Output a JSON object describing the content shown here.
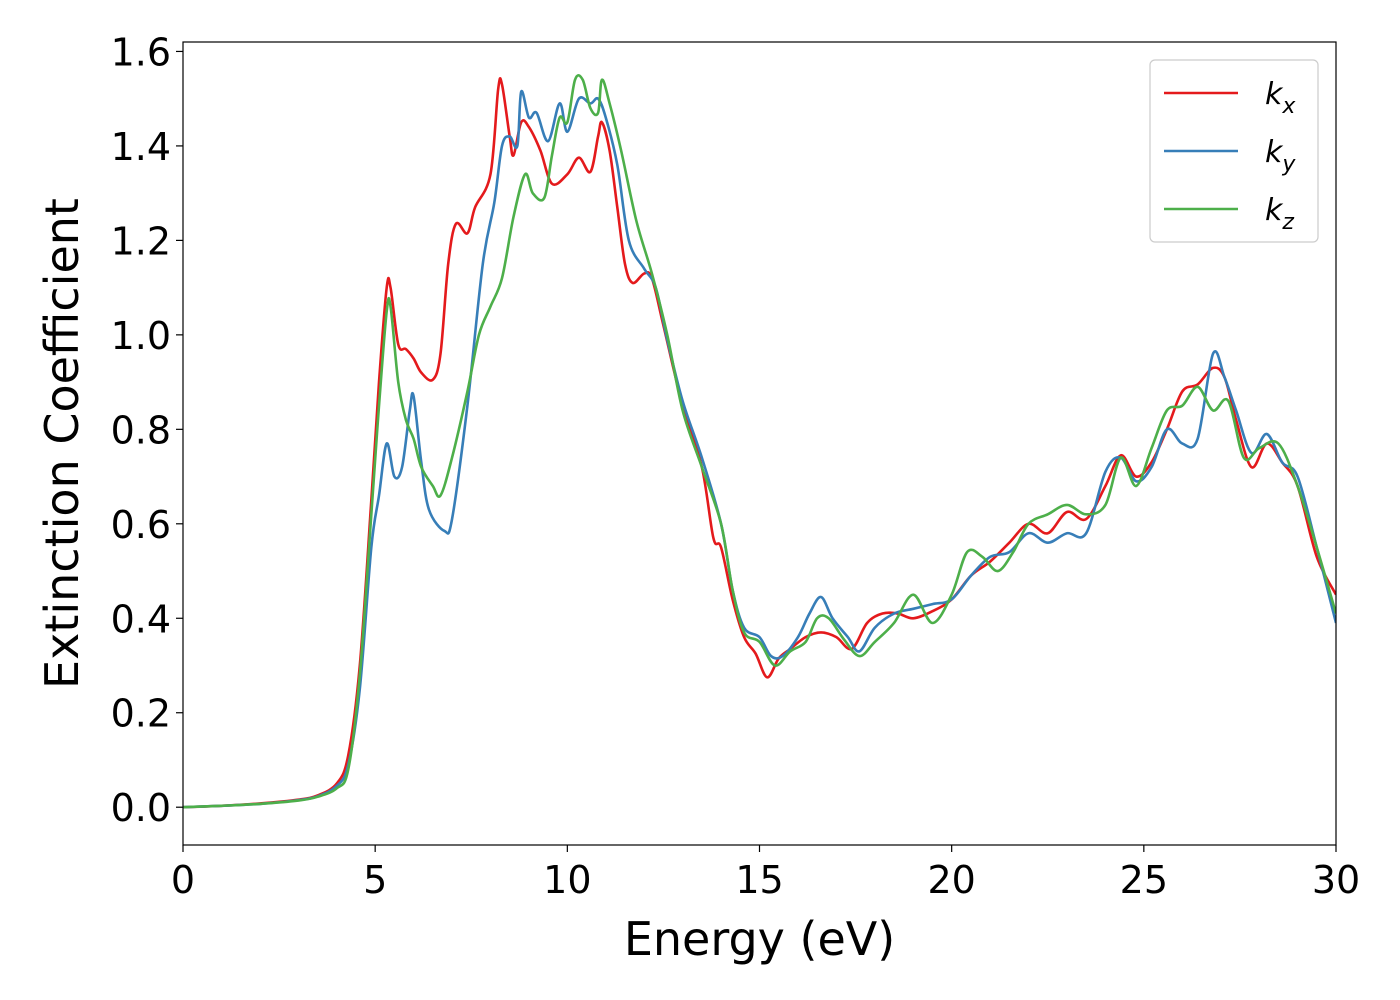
{
  "chart_data": {
    "type": "line",
    "title": "",
    "xlabel": "Energy (eV)",
    "ylabel": "Extinction Coefficient",
    "xlim": [
      0,
      30
    ],
    "ylim": [
      -0.08,
      1.62
    ],
    "xticks": [
      "0",
      "5",
      "10",
      "15",
      "20",
      "25",
      "30"
    ],
    "yticks": [
      "0.0",
      "0.2",
      "0.4",
      "0.6",
      "0.8",
      "1.0",
      "1.2",
      "1.4",
      "1.6"
    ],
    "grid": false,
    "legend_position": "top-right",
    "series": [
      {
        "name": "k",
        "subscript": "x",
        "color": "#e41a1c",
        "points": [
          [
            0,
            0
          ],
          [
            1,
            0.003
          ],
          [
            2,
            0.008
          ],
          [
            3,
            0.016
          ],
          [
            3.5,
            0.025
          ],
          [
            4.0,
            0.05
          ],
          [
            4.3,
            0.11
          ],
          [
            4.6,
            0.3
          ],
          [
            4.9,
            0.65
          ],
          [
            5.1,
            0.9
          ],
          [
            5.3,
            1.1
          ],
          [
            5.4,
            1.1
          ],
          [
            5.6,
            0.98
          ],
          [
            5.8,
            0.97
          ],
          [
            6.0,
            0.95
          ],
          [
            6.2,
            0.92
          ],
          [
            6.5,
            0.905
          ],
          [
            6.7,
            0.96
          ],
          [
            6.9,
            1.15
          ],
          [
            7.1,
            1.235
          ],
          [
            7.4,
            1.215
          ],
          [
            7.6,
            1.27
          ],
          [
            8.0,
            1.34
          ],
          [
            8.2,
            1.52
          ],
          [
            8.3,
            1.53
          ],
          [
            8.5,
            1.42
          ],
          [
            8.6,
            1.38
          ],
          [
            8.8,
            1.45
          ],
          [
            9.0,
            1.44
          ],
          [
            9.3,
            1.39
          ],
          [
            9.6,
            1.32
          ],
          [
            10.0,
            1.34
          ],
          [
            10.3,
            1.375
          ],
          [
            10.6,
            1.345
          ],
          [
            10.8,
            1.42
          ],
          [
            10.9,
            1.45
          ],
          [
            11.1,
            1.39
          ],
          [
            11.3,
            1.27
          ],
          [
            11.5,
            1.15
          ],
          [
            11.7,
            1.11
          ],
          [
            12.0,
            1.13
          ],
          [
            12.2,
            1.12
          ],
          [
            12.5,
            1.02
          ],
          [
            13.0,
            0.85
          ],
          [
            13.5,
            0.72
          ],
          [
            13.8,
            0.57
          ],
          [
            14.0,
            0.55
          ],
          [
            14.3,
            0.44
          ],
          [
            14.6,
            0.36
          ],
          [
            14.9,
            0.325
          ],
          [
            15.2,
            0.275
          ],
          [
            15.5,
            0.315
          ],
          [
            15.8,
            0.335
          ],
          [
            16.2,
            0.36
          ],
          [
            16.6,
            0.37
          ],
          [
            17.0,
            0.36
          ],
          [
            17.4,
            0.335
          ],
          [
            17.8,
            0.39
          ],
          [
            18.2,
            0.41
          ],
          [
            18.6,
            0.41
          ],
          [
            19.0,
            0.4
          ],
          [
            19.5,
            0.415
          ],
          [
            20.0,
            0.44
          ],
          [
            20.5,
            0.49
          ],
          [
            21.0,
            0.52
          ],
          [
            21.5,
            0.56
          ],
          [
            22.0,
            0.6
          ],
          [
            22.5,
            0.58
          ],
          [
            23.0,
            0.625
          ],
          [
            23.5,
            0.61
          ],
          [
            24.0,
            0.68
          ],
          [
            24.4,
            0.745
          ],
          [
            24.8,
            0.7
          ],
          [
            25.2,
            0.73
          ],
          [
            25.6,
            0.8
          ],
          [
            26.0,
            0.88
          ],
          [
            26.4,
            0.895
          ],
          [
            26.8,
            0.93
          ],
          [
            27.1,
            0.91
          ],
          [
            27.4,
            0.82
          ],
          [
            27.8,
            0.72
          ],
          [
            28.2,
            0.77
          ],
          [
            28.6,
            0.73
          ],
          [
            29.0,
            0.68
          ],
          [
            29.5,
            0.53
          ],
          [
            30.0,
            0.45
          ]
        ]
      },
      {
        "name": "k",
        "subscript": "y",
        "color": "#377eb8",
        "points": [
          [
            0,
            0
          ],
          [
            1,
            0.003
          ],
          [
            2,
            0.007
          ],
          [
            3,
            0.015
          ],
          [
            3.5,
            0.023
          ],
          [
            4.0,
            0.045
          ],
          [
            4.3,
            0.09
          ],
          [
            4.6,
            0.25
          ],
          [
            4.9,
            0.55
          ],
          [
            5.1,
            0.66
          ],
          [
            5.3,
            0.77
          ],
          [
            5.5,
            0.7
          ],
          [
            5.7,
            0.72
          ],
          [
            5.9,
            0.84
          ],
          [
            6.0,
            0.87
          ],
          [
            6.2,
            0.73
          ],
          [
            6.4,
            0.63
          ],
          [
            6.8,
            0.585
          ],
          [
            7.0,
            0.61
          ],
          [
            7.4,
            0.85
          ],
          [
            7.8,
            1.15
          ],
          [
            8.1,
            1.28
          ],
          [
            8.3,
            1.4
          ],
          [
            8.5,
            1.42
          ],
          [
            8.7,
            1.4
          ],
          [
            8.8,
            1.515
          ],
          [
            9.0,
            1.46
          ],
          [
            9.2,
            1.47
          ],
          [
            9.5,
            1.41
          ],
          [
            9.8,
            1.49
          ],
          [
            10.0,
            1.43
          ],
          [
            10.3,
            1.5
          ],
          [
            10.6,
            1.49
          ],
          [
            10.8,
            1.5
          ],
          [
            11.0,
            1.46
          ],
          [
            11.3,
            1.36
          ],
          [
            11.6,
            1.2
          ],
          [
            12.0,
            1.14
          ],
          [
            12.3,
            1.1
          ],
          [
            12.6,
            0.99
          ],
          [
            13.0,
            0.86
          ],
          [
            13.5,
            0.74
          ],
          [
            14.0,
            0.6
          ],
          [
            14.3,
            0.46
          ],
          [
            14.6,
            0.38
          ],
          [
            15.0,
            0.36
          ],
          [
            15.3,
            0.32
          ],
          [
            15.6,
            0.32
          ],
          [
            16.0,
            0.36
          ],
          [
            16.3,
            0.41
          ],
          [
            16.6,
            0.445
          ],
          [
            16.9,
            0.4
          ],
          [
            17.3,
            0.36
          ],
          [
            17.6,
            0.33
          ],
          [
            18.0,
            0.38
          ],
          [
            18.5,
            0.41
          ],
          [
            19.0,
            0.42
          ],
          [
            19.5,
            0.43
          ],
          [
            20.0,
            0.44
          ],
          [
            20.5,
            0.49
          ],
          [
            21.0,
            0.53
          ],
          [
            21.5,
            0.54
          ],
          [
            22.0,
            0.58
          ],
          [
            22.5,
            0.56
          ],
          [
            23.0,
            0.58
          ],
          [
            23.5,
            0.58
          ],
          [
            24.0,
            0.71
          ],
          [
            24.4,
            0.74
          ],
          [
            24.8,
            0.69
          ],
          [
            25.2,
            0.72
          ],
          [
            25.6,
            0.8
          ],
          [
            26.0,
            0.77
          ],
          [
            26.4,
            0.78
          ],
          [
            26.8,
            0.96
          ],
          [
            27.1,
            0.91
          ],
          [
            27.4,
            0.84
          ],
          [
            27.8,
            0.75
          ],
          [
            28.2,
            0.79
          ],
          [
            28.6,
            0.73
          ],
          [
            29.0,
            0.7
          ],
          [
            29.5,
            0.55
          ],
          [
            30.0,
            0.39
          ]
        ]
      },
      {
        "name": "k",
        "subscript": "z",
        "color": "#4daf4a",
        "points": [
          [
            0,
            0
          ],
          [
            1,
            0.003
          ],
          [
            2,
            0.007
          ],
          [
            3,
            0.014
          ],
          [
            3.5,
            0.022
          ],
          [
            4.0,
            0.04
          ],
          [
            4.3,
            0.08
          ],
          [
            4.6,
            0.28
          ],
          [
            4.9,
            0.62
          ],
          [
            5.1,
            0.85
          ],
          [
            5.3,
            1.05
          ],
          [
            5.4,
            1.06
          ],
          [
            5.6,
            0.9
          ],
          [
            5.8,
            0.82
          ],
          [
            6.0,
            0.78
          ],
          [
            6.2,
            0.72
          ],
          [
            6.5,
            0.68
          ],
          [
            6.7,
            0.66
          ],
          [
            7.0,
            0.74
          ],
          [
            7.4,
            0.88
          ],
          [
            7.7,
            1.0
          ],
          [
            8.0,
            1.06
          ],
          [
            8.3,
            1.12
          ],
          [
            8.6,
            1.25
          ],
          [
            8.9,
            1.34
          ],
          [
            9.1,
            1.3
          ],
          [
            9.4,
            1.29
          ],
          [
            9.6,
            1.38
          ],
          [
            9.8,
            1.46
          ],
          [
            10.0,
            1.45
          ],
          [
            10.2,
            1.54
          ],
          [
            10.4,
            1.54
          ],
          [
            10.6,
            1.48
          ],
          [
            10.8,
            1.47
          ],
          [
            10.9,
            1.54
          ],
          [
            11.1,
            1.49
          ],
          [
            11.4,
            1.39
          ],
          [
            11.8,
            1.24
          ],
          [
            12.2,
            1.13
          ],
          [
            12.6,
            1.0
          ],
          [
            13.0,
            0.84
          ],
          [
            13.5,
            0.72
          ],
          [
            14.0,
            0.6
          ],
          [
            14.3,
            0.46
          ],
          [
            14.6,
            0.37
          ],
          [
            15.0,
            0.35
          ],
          [
            15.4,
            0.3
          ],
          [
            15.8,
            0.33
          ],
          [
            16.2,
            0.35
          ],
          [
            16.5,
            0.4
          ],
          [
            16.8,
            0.4
          ],
          [
            17.2,
            0.355
          ],
          [
            17.6,
            0.32
          ],
          [
            18.0,
            0.35
          ],
          [
            18.5,
            0.39
          ],
          [
            19.0,
            0.45
          ],
          [
            19.5,
            0.39
          ],
          [
            20.0,
            0.45
          ],
          [
            20.4,
            0.54
          ],
          [
            20.8,
            0.53
          ],
          [
            21.2,
            0.5
          ],
          [
            21.6,
            0.54
          ],
          [
            22.0,
            0.6
          ],
          [
            22.5,
            0.62
          ],
          [
            23.0,
            0.64
          ],
          [
            23.5,
            0.62
          ],
          [
            24.0,
            0.64
          ],
          [
            24.4,
            0.74
          ],
          [
            24.8,
            0.68
          ],
          [
            25.2,
            0.76
          ],
          [
            25.6,
            0.84
          ],
          [
            26.0,
            0.85
          ],
          [
            26.4,
            0.89
          ],
          [
            26.8,
            0.84
          ],
          [
            27.2,
            0.86
          ],
          [
            27.6,
            0.74
          ],
          [
            28.0,
            0.76
          ],
          [
            28.5,
            0.77
          ],
          [
            29.0,
            0.68
          ],
          [
            29.5,
            0.55
          ],
          [
            30.0,
            0.41
          ]
        ]
      }
    ]
  }
}
